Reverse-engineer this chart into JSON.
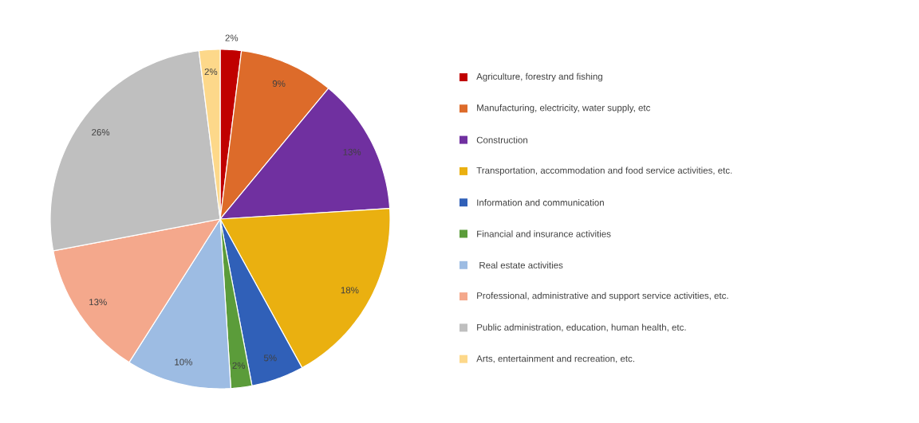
{
  "chart_data": {
    "type": "pie",
    "categories": [
      "Agriculture, forestry and fishing",
      "Manufacturing, electricity, water supply, etc",
      "Construction",
      "Transportation, accommodation and food service activities, etc.",
      "Information and communication",
      "Financial and insurance activities",
      " Real estate activities",
      "Professional, administrative and support service activities, etc.",
      "Public administration, education, human health, etc.",
      "Arts, entertainment and recreation, etc."
    ],
    "values": [
      2,
      9,
      13,
      18,
      5,
      2,
      10,
      13,
      26,
      2
    ],
    "value_labels": [
      "2%",
      "9%",
      "13%",
      "18%",
      "5%",
      "2%",
      "10%",
      "13%",
      "26%",
      "2%"
    ],
    "colors": [
      "#c00000",
      "#dd6b2a",
      "#7030a0",
      "#eab010",
      "#3060b8",
      "#5b9c3a",
      "#9dbce3",
      "#f4a88c",
      "#bfbfbf",
      "#fdd88a"
    ],
    "legend": "right"
  }
}
